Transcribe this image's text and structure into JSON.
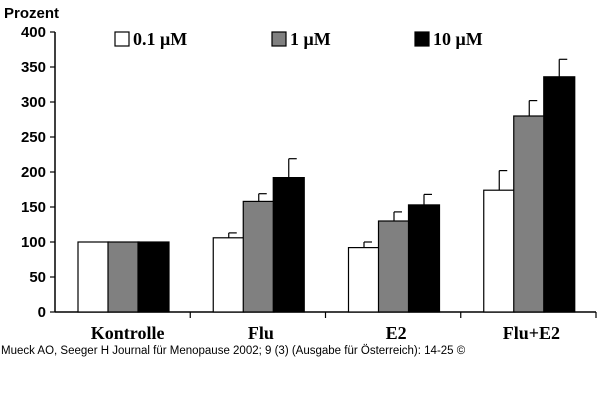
{
  "chart_data": {
    "type": "bar",
    "ylabel": "Prozent",
    "xlabel": "",
    "ylim": [
      0,
      400
    ],
    "yticks": [
      0,
      50,
      100,
      150,
      200,
      250,
      300,
      350,
      400
    ],
    "grid": false,
    "legend_position": "top",
    "categories": [
      "Kontrolle",
      "Flu",
      "E2",
      "Flu+E2"
    ],
    "series": [
      {
        "name": "0.1 μM",
        "color": "#ffffff",
        "values": [
          100,
          106,
          92,
          174
        ],
        "errors": [
          0,
          7,
          8,
          28
        ]
      },
      {
        "name": "1 μM",
        "color": "#808080",
        "values": [
          100,
          158,
          130,
          280
        ],
        "errors": [
          0,
          11,
          13,
          22
        ]
      },
      {
        "name": "10 μM",
        "color": "#000000",
        "values": [
          100,
          192,
          153,
          336
        ],
        "errors": [
          0,
          27,
          15,
          25
        ]
      }
    ]
  },
  "citation": "Mueck AO, Seeger H Journal für Menopause 2002; 9 (3) (Ausgabe für Österreich): 14-25 ©"
}
